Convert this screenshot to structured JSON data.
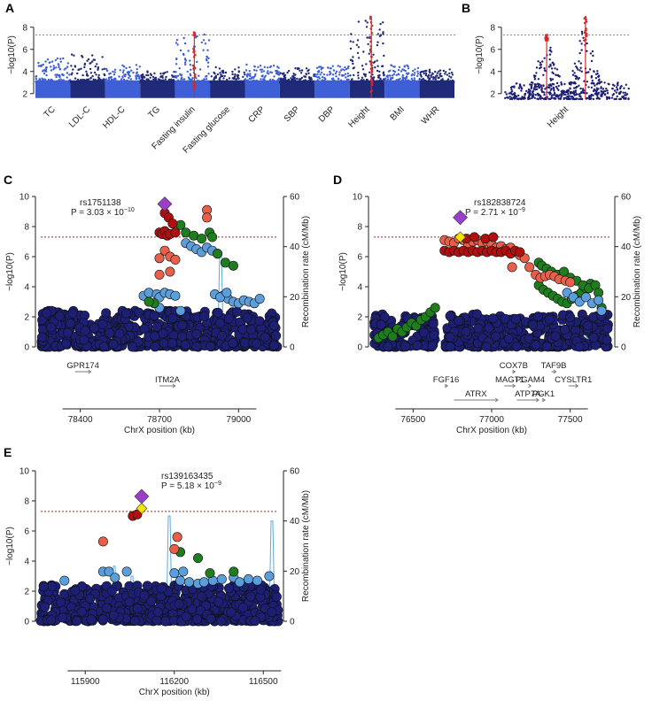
{
  "chart_data": [
    {
      "panel": "A",
      "type": "scatter",
      "subtype": "manhattan",
      "ylabel": "−log10(P)",
      "yticks": [
        2,
        4,
        6,
        8
      ],
      "ylim": [
        1.5,
        9.5
      ],
      "threshold": 7.3,
      "categories": [
        "TC",
        "LDL-C",
        "HDL-C",
        "TG",
        "Fasting insulin",
        "Fasting glucose",
        "CRP",
        "SBP",
        "DBP",
        "Height",
        "BMI",
        "WHR"
      ],
      "series": [
        {
          "trait": "TC",
          "max": 5.2
        },
        {
          "trait": "LDL-C",
          "max": 5.6
        },
        {
          "trait": "HDL-C",
          "max": 4.6
        },
        {
          "trait": "TG",
          "max": 4.1
        },
        {
          "trait": "Fasting insulin",
          "max": 7.6,
          "highlight": true
        },
        {
          "trait": "Fasting glucose",
          "max": 4.4
        },
        {
          "trait": "CRP",
          "max": 4.7
        },
        {
          "trait": "SBP",
          "max": 4.3
        },
        {
          "trait": "DBP",
          "max": 4.5
        },
        {
          "trait": "Height",
          "max": 9.0,
          "highlight": true
        },
        {
          "trait": "BMI",
          "max": 4.6
        },
        {
          "trait": "WHR",
          "max": 4.2
        }
      ],
      "colors": {
        "dark": "#1f2a78",
        "light": "#3f5fd6",
        "highlight": "#d42a2a"
      }
    },
    {
      "panel": "B",
      "type": "scatter",
      "subtype": "manhattan",
      "ylabel": "−log10(P)",
      "yticks": [
        2,
        4,
        6,
        8
      ],
      "ylim": [
        1.5,
        9.5
      ],
      "threshold": 7.3,
      "categories": [
        "Height"
      ],
      "peaks": [
        {
          "position": 0.35,
          "max": 7.3
        },
        {
          "position": 0.65,
          "max": 9.0
        }
      ]
    },
    {
      "panel": "C",
      "type": "scatter",
      "subtype": "regional",
      "lead_snp": "rs1751138",
      "p_label": "P = 3.03 × 10",
      "p_exp": "−10",
      "ylabel": "−log10(P)",
      "y2label": "Recombination rate (cM/Mb)",
      "xlabel": "ChrX position (kb)",
      "xlim": [
        78250,
        79150
      ],
      "xticks": [
        78400,
        78700,
        79000
      ],
      "ylim": [
        0,
        10
      ],
      "yticks": [
        0,
        2,
        4,
        6,
        8,
        10
      ],
      "y2ticks": [
        0,
        20,
        40,
        60
      ],
      "threshold": 7.3,
      "lead": {
        "x": 78720,
        "y": 9.5
      },
      "genes": [
        {
          "name": "GPR174",
          "start": 78380,
          "end": 78440,
          "row": 0
        },
        {
          "name": "ITM2A",
          "start": 78700,
          "end": 78760,
          "row": 1
        }
      ]
    },
    {
      "panel": "D",
      "type": "scatter",
      "subtype": "regional",
      "lead_snp": "rs182838724",
      "p_label": "P = 2.71 × 10",
      "p_exp": "−9",
      "ylabel": "−log10(P)",
      "y2label": "Recombination rate (cM/Mb)",
      "xlabel": "ChrX position (kb)",
      "xlim": [
        76250,
        77750
      ],
      "xticks": [
        76500,
        77000,
        77500
      ],
      "ylim": [
        0,
        10
      ],
      "yticks": [
        0,
        2,
        4,
        6,
        8,
        10
      ],
      "y2ticks": [
        0,
        20,
        40,
        60
      ],
      "threshold": 7.3,
      "lead": {
        "x": 76800,
        "y": 8.6
      },
      "second": {
        "x": 76800,
        "y": 7.3
      },
      "genes": [
        {
          "name": "COX7B",
          "start": 77130,
          "end": 77150,
          "row": 0
        },
        {
          "name": "TAF9B",
          "start": 77380,
          "end": 77410,
          "row": 0
        },
        {
          "name": "FGF16",
          "start": 76700,
          "end": 76720,
          "row": 1
        },
        {
          "name": "MAGT1",
          "start": 77080,
          "end": 77150,
          "row": 1
        },
        {
          "name": "PGAM4",
          "start": 77240,
          "end": 77250,
          "row": 1
        },
        {
          "name": "CYSLTR1",
          "start": 77490,
          "end": 77550,
          "row": 1
        },
        {
          "name": "ATRX",
          "start": 76760,
          "end": 77040,
          "row": 2
        },
        {
          "name": "ATP7A",
          "start": 77160,
          "end": 77300,
          "row": 2
        },
        {
          "name": "PGK1",
          "start": 77320,
          "end": 77340,
          "row": 2
        }
      ]
    },
    {
      "panel": "E",
      "type": "scatter",
      "subtype": "regional",
      "lead_snp": "rs139163435",
      "p_label": "P = 5.18 × 10",
      "p_exp": "−9",
      "ylabel": "−log10(P)",
      "y2label": "Recombination rate (cM/Mb)",
      "xlabel": "ChrX position (kb)",
      "xlim": [
        115750,
        116550
      ],
      "xticks": [
        115900,
        116200,
        116500
      ],
      "ylim": [
        0,
        10
      ],
      "yticks": [
        0,
        2,
        4,
        6,
        8,
        10
      ],
      "y2ticks": [
        0,
        20,
        40,
        60
      ],
      "threshold": 7.3,
      "lead": {
        "x": 116090,
        "y": 8.3
      },
      "second": {
        "x": 116090,
        "y": 7.5
      },
      "genes": []
    }
  ],
  "colors": {
    "navy": "#1c1f73",
    "light_blue": "#5a9fdc",
    "green": "#1e7e1e",
    "orange": "#e8604a",
    "red": "#b01010",
    "purple": "#9b3fc8",
    "yellow": "#f5e400",
    "threshold": "#a52a2a",
    "recomb": "#5aa9e0"
  }
}
